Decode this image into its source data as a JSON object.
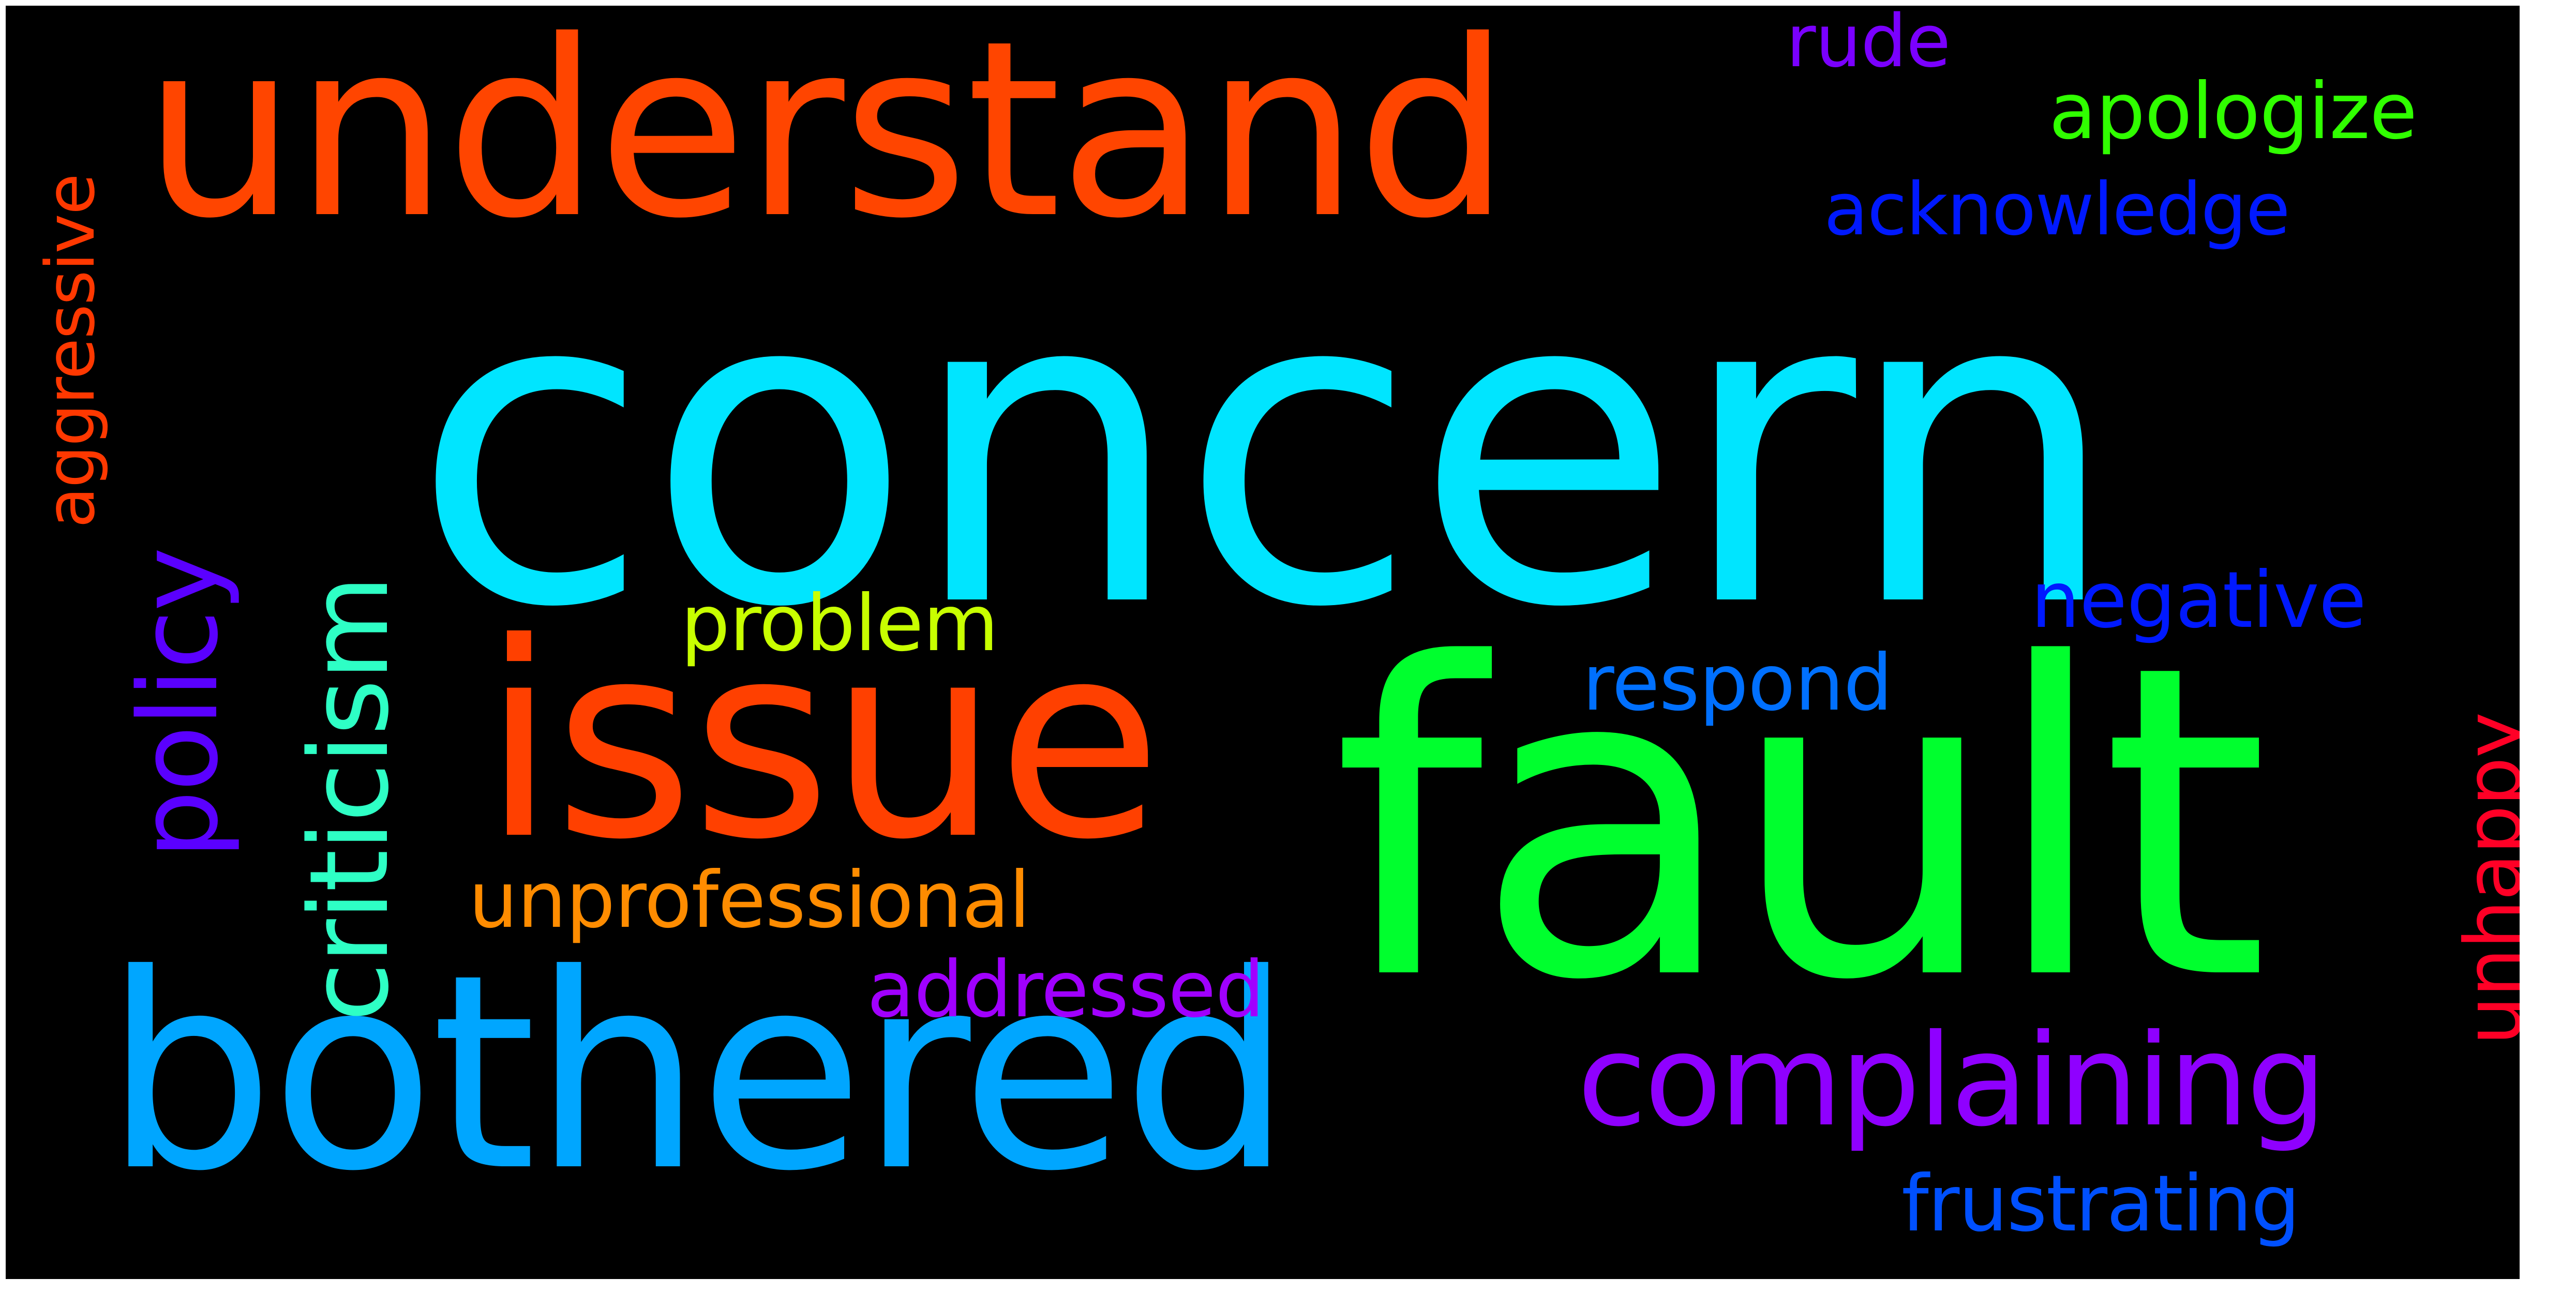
{
  "word_cloud": {
    "background": "#000000",
    "words": [
      {
        "text": "concern",
        "color": "#00E5FF",
        "orientation": "horizontal"
      },
      {
        "text": "fault",
        "color": "#00FF2E",
        "orientation": "horizontal"
      },
      {
        "text": "understand",
        "color": "#FF4500",
        "orientation": "horizontal"
      },
      {
        "text": "bothered",
        "color": "#00A6FF",
        "orientation": "horizontal"
      },
      {
        "text": "issue",
        "color": "#FF4000",
        "orientation": "horizontal"
      },
      {
        "text": "complaining",
        "color": "#8F00FF",
        "orientation": "horizontal"
      },
      {
        "text": "criticism",
        "color": "#2EFFC5",
        "orientation": "vertical"
      },
      {
        "text": "policy",
        "color": "#5A00FF",
        "orientation": "vertical"
      },
      {
        "text": "unprofessional",
        "color": "#FF8C00",
        "orientation": "horizontal"
      },
      {
        "text": "addressed",
        "color": "#A000FF",
        "orientation": "horizontal"
      },
      {
        "text": "apologize",
        "color": "#30FF00",
        "orientation": "horizontal"
      },
      {
        "text": "acknowledge",
        "color": "#0019FF",
        "orientation": "horizontal"
      },
      {
        "text": "negative",
        "color": "#0019FF",
        "orientation": "horizontal"
      },
      {
        "text": "respond",
        "color": "#0070FF",
        "orientation": "horizontal"
      },
      {
        "text": "frustrating",
        "color": "#0050FF",
        "orientation": "horizontal"
      },
      {
        "text": "problem",
        "color": "#C8FF00",
        "orientation": "horizontal"
      },
      {
        "text": "rude",
        "color": "#7A00FF",
        "orientation": "horizontal"
      },
      {
        "text": "aggressive",
        "color": "#FF3800",
        "orientation": "vertical"
      },
      {
        "text": "unhappy",
        "color": "#FF0026",
        "orientation": "vertical"
      }
    ]
  }
}
